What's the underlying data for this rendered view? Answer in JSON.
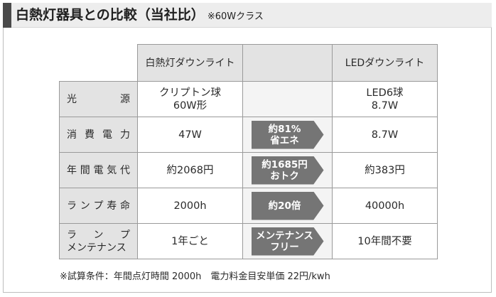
{
  "title": {
    "main": "白熱灯器具との比較（当社比）",
    "sub": "※60Wクラス"
  },
  "table": {
    "headers": {
      "incandescent": "白熱灯ダウンライト",
      "middle": "",
      "led": "LEDダウンライト"
    },
    "rows": [
      {
        "label": "光源",
        "incandescent": [
          "クリプトン球",
          "60W形"
        ],
        "arrow": [],
        "led": [
          "LED6球",
          "8.7W"
        ]
      },
      {
        "label": "消費電力",
        "incandescent": [
          "47W"
        ],
        "arrow": [
          "約81%",
          "省エネ"
        ],
        "led": [
          "8.7W"
        ]
      },
      {
        "label": "年間電気代",
        "incandescent": [
          "約2068円"
        ],
        "arrow": [
          "約1685円",
          "おトク"
        ],
        "led": [
          "約383円"
        ]
      },
      {
        "label": "ランプ寿命",
        "incandescent": [
          "2000h"
        ],
        "arrow": [
          "約20倍"
        ],
        "led": [
          "40000h"
        ]
      },
      {
        "label_lines": [
          "ランプ",
          "メンテナンス"
        ],
        "incandescent": [
          "1年ごと"
        ],
        "arrow": [
          "メンテナンス",
          "フリー"
        ],
        "led": [
          "10年間不要"
        ]
      }
    ]
  },
  "footnote": "※試算条件：年間点灯時間 2000h　電力料金目安単価 22円/kwh",
  "colors": {
    "label_bg": "#e3e3e3",
    "arrow_bg": "#757575",
    "border": "#9a9a9a",
    "title_accent": "#4a4a4a"
  }
}
